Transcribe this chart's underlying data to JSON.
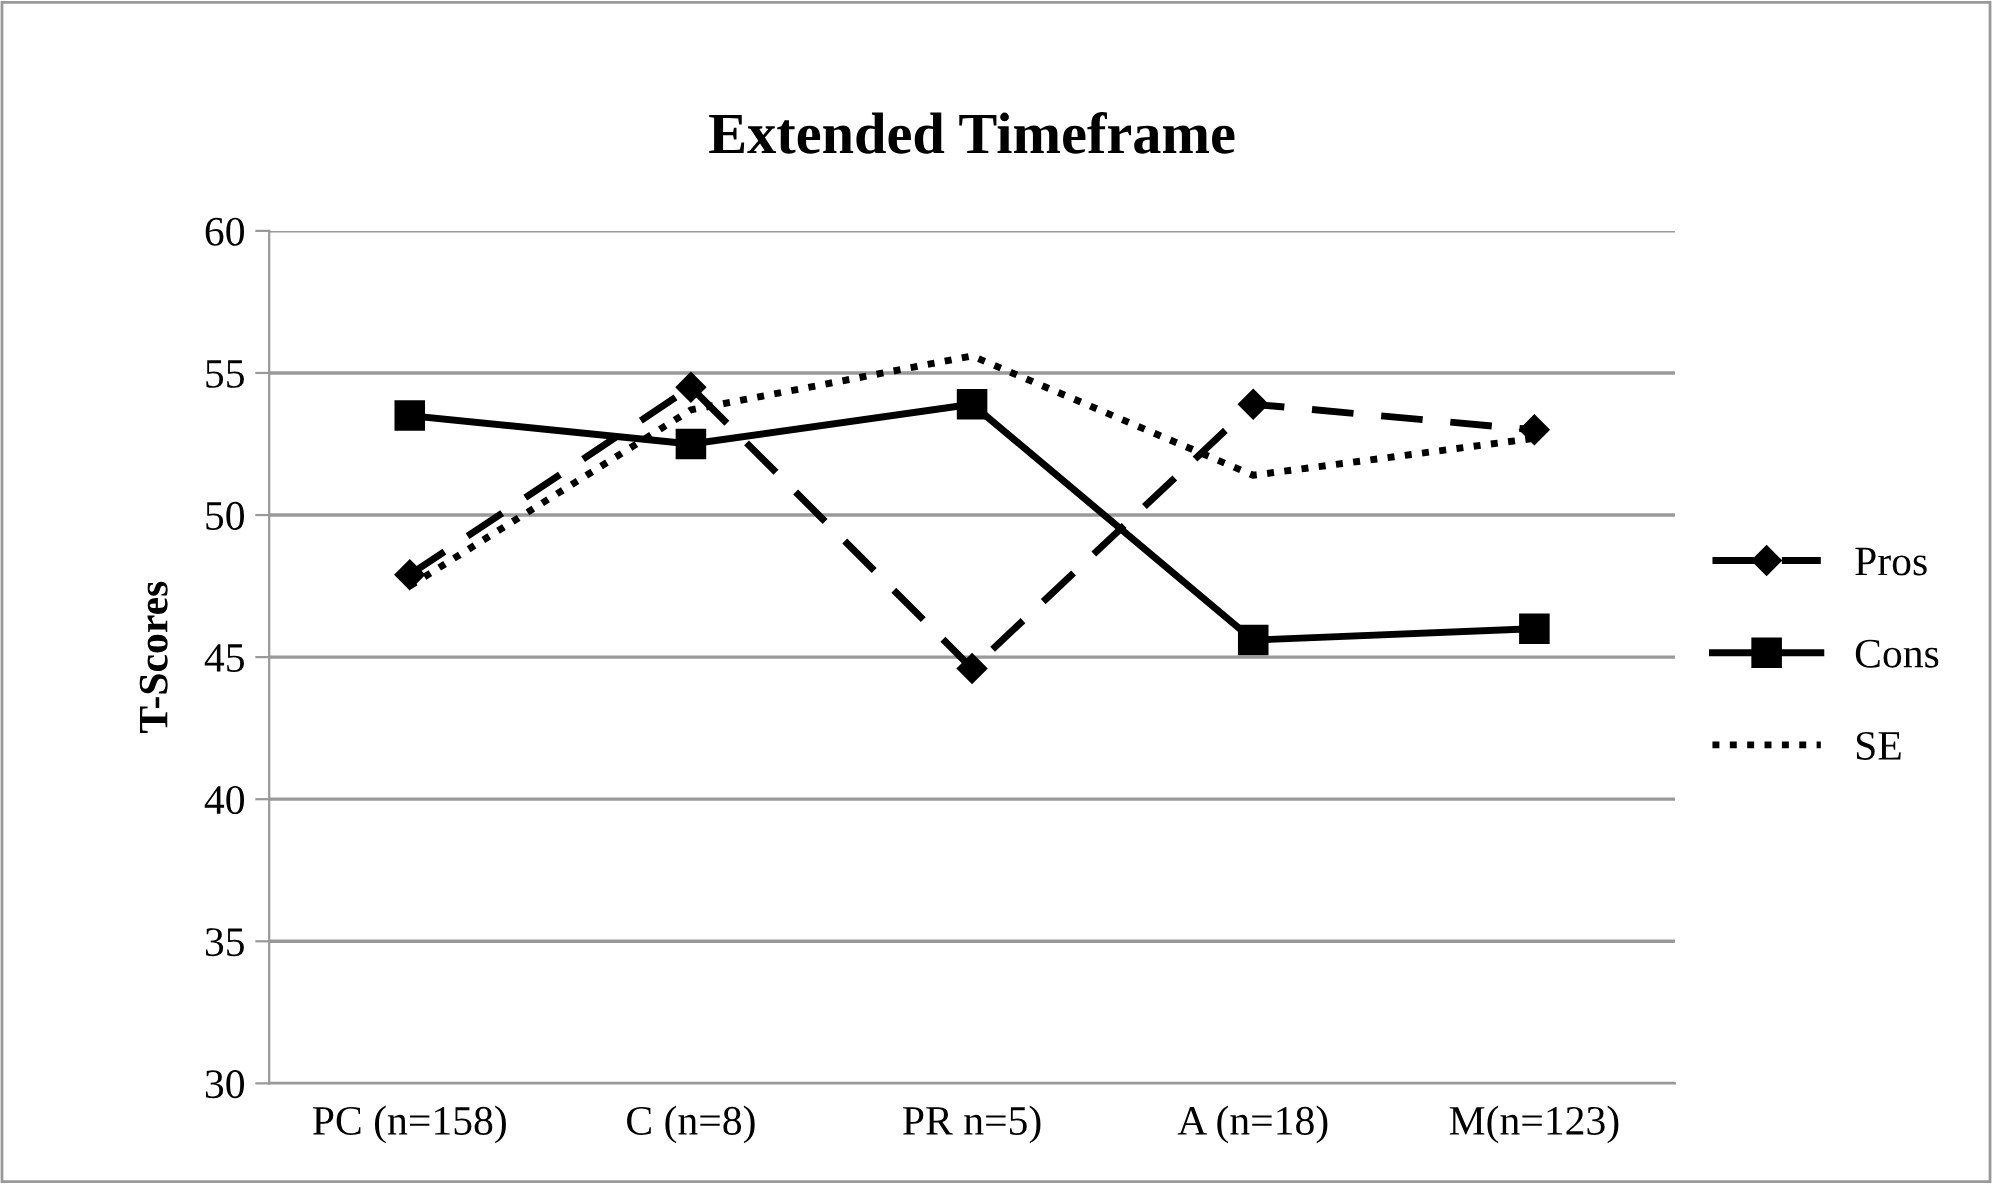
{
  "chart_data": {
    "type": "line",
    "title": "Extended Timeframe",
    "ylabel": "T-Scores",
    "categories": [
      "PC (n=158)",
      "C (n=8)",
      "PR n=5)",
      "A (n=18)",
      "M(n=123)"
    ],
    "series": [
      {
        "name": "Pros",
        "color": "#000000",
        "values": [
          47.9,
          54.5,
          44.6,
          53.9,
          53.0
        ],
        "marker": "diamond",
        "line_style": "dashed"
      },
      {
        "name": "Cons",
        "color": "#000000",
        "values": [
          53.5,
          52.5,
          53.9,
          45.6,
          46.0
        ],
        "marker": "square",
        "line_style": "solid"
      },
      {
        "name": "SE",
        "color": "#000000",
        "values": [
          47.5,
          53.7,
          55.6,
          51.4,
          52.7
        ],
        "marker": "none",
        "line_style": "dotted"
      }
    ],
    "ylim": [
      30,
      60
    ],
    "yticks": [
      30,
      35,
      40,
      45,
      50,
      55,
      60
    ],
    "grid": "y",
    "legend": "right"
  }
}
